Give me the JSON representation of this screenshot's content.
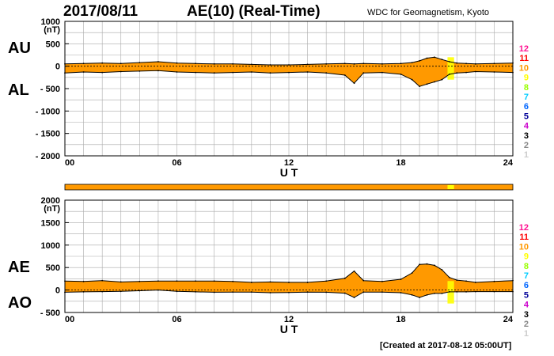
{
  "header": {
    "date": "2017/08/11",
    "title": "AE(10) (Real-Time)",
    "source": "WDC for Geomagnetism, Kyoto"
  },
  "footer": {
    "created": "[Created at 2017-08-12 05:00UT]"
  },
  "colors": {
    "fill": "#ff9900",
    "highlight": "#ffff00",
    "outline": "#000000",
    "grid": "#aaaaaa"
  },
  "station_scale": [
    {
      "label": "12",
      "color": "#ff1493"
    },
    {
      "label": "11",
      "color": "#ff0000"
    },
    {
      "label": "10",
      "color": "#ff9900"
    },
    {
      "label": "9",
      "color": "#ffff00"
    },
    {
      "label": "8",
      "color": "#99ff00"
    },
    {
      "label": "7",
      "color": "#00ccff"
    },
    {
      "label": "6",
      "color": "#0066ff"
    },
    {
      "label": "5",
      "color": "#000099"
    },
    {
      "label": "4",
      "color": "#cc00cc"
    },
    {
      "label": "3",
      "color": "#000000"
    },
    {
      "label": "2",
      "color": "#888888"
    },
    {
      "label": "1",
      "color": "#cccccc"
    }
  ],
  "chart_data": [
    {
      "type": "area",
      "title": "AU / AL",
      "xlabel": "U T",
      "ylabel": "(nT)",
      "upper_label": "AU",
      "lower_label": "AL",
      "xlim": [
        0,
        24
      ],
      "ylim": [
        -2000,
        1000
      ],
      "x_ticks": [
        "00",
        "06",
        "12",
        "18",
        "24"
      ],
      "y_ticks": [
        "1000",
        "500",
        "0",
        "- 500",
        "- 1000",
        "- 1500",
        "- 2000"
      ],
      "x": [
        0,
        1,
        2,
        3,
        4,
        5,
        6,
        7,
        8,
        9,
        10,
        11,
        12,
        13,
        14,
        15,
        15.5,
        16,
        17,
        18,
        18.6,
        19,
        19.4,
        19.8,
        20.2,
        20.6,
        21,
        21.5,
        22,
        23,
        24
      ],
      "series": [
        {
          "name": "AU",
          "values": [
            50,
            60,
            70,
            60,
            80,
            100,
            70,
            60,
            50,
            50,
            40,
            30,
            30,
            40,
            50,
            60,
            50,
            60,
            50,
            60,
            80,
            120,
            180,
            200,
            150,
            100,
            70,
            60,
            50,
            60,
            70
          ]
        },
        {
          "name": "AL",
          "values": [
            -150,
            -130,
            -140,
            -120,
            -110,
            -100,
            -130,
            -140,
            -150,
            -140,
            -130,
            -150,
            -140,
            -130,
            -150,
            -200,
            -380,
            -150,
            -140,
            -180,
            -300,
            -450,
            -400,
            -350,
            -300,
            -180,
            -150,
            -140,
            -120,
            -130,
            -140
          ]
        }
      ]
    },
    {
      "type": "area",
      "title": "AE / AO",
      "xlabel": "U T",
      "ylabel": "(nT)",
      "upper_label": "AE",
      "lower_label": "AO",
      "xlim": [
        0,
        24
      ],
      "ylim": [
        -500,
        2000
      ],
      "x_ticks": [
        "00",
        "06",
        "12",
        "18",
        "24"
      ],
      "y_ticks": [
        "2000",
        "1500",
        "1000",
        "500",
        "0",
        "- 500"
      ],
      "x": [
        0,
        1,
        2,
        3,
        4,
        5,
        6,
        7,
        8,
        9,
        10,
        11,
        12,
        13,
        14,
        15,
        15.5,
        16,
        17,
        18,
        18.6,
        19,
        19.4,
        19.8,
        20.2,
        20.6,
        21,
        21.5,
        22,
        23,
        24
      ],
      "series": [
        {
          "name": "AE",
          "values": [
            200,
            190,
            210,
            180,
            190,
            200,
            200,
            200,
            200,
            190,
            170,
            180,
            170,
            170,
            200,
            260,
            420,
            210,
            190,
            240,
            380,
            570,
            580,
            550,
            450,
            280,
            220,
            200,
            170,
            190,
            210
          ]
        },
        {
          "name": "AO",
          "values": [
            -50,
            -40,
            -35,
            -30,
            -15,
            0,
            -30,
            -40,
            -50,
            -45,
            -45,
            -60,
            -55,
            -45,
            -50,
            -70,
            -165,
            -45,
            -45,
            -60,
            -110,
            -165,
            -110,
            -75,
            -75,
            -40,
            -40,
            -40,
            -35,
            -35,
            -35
          ]
        }
      ]
    }
  ]
}
